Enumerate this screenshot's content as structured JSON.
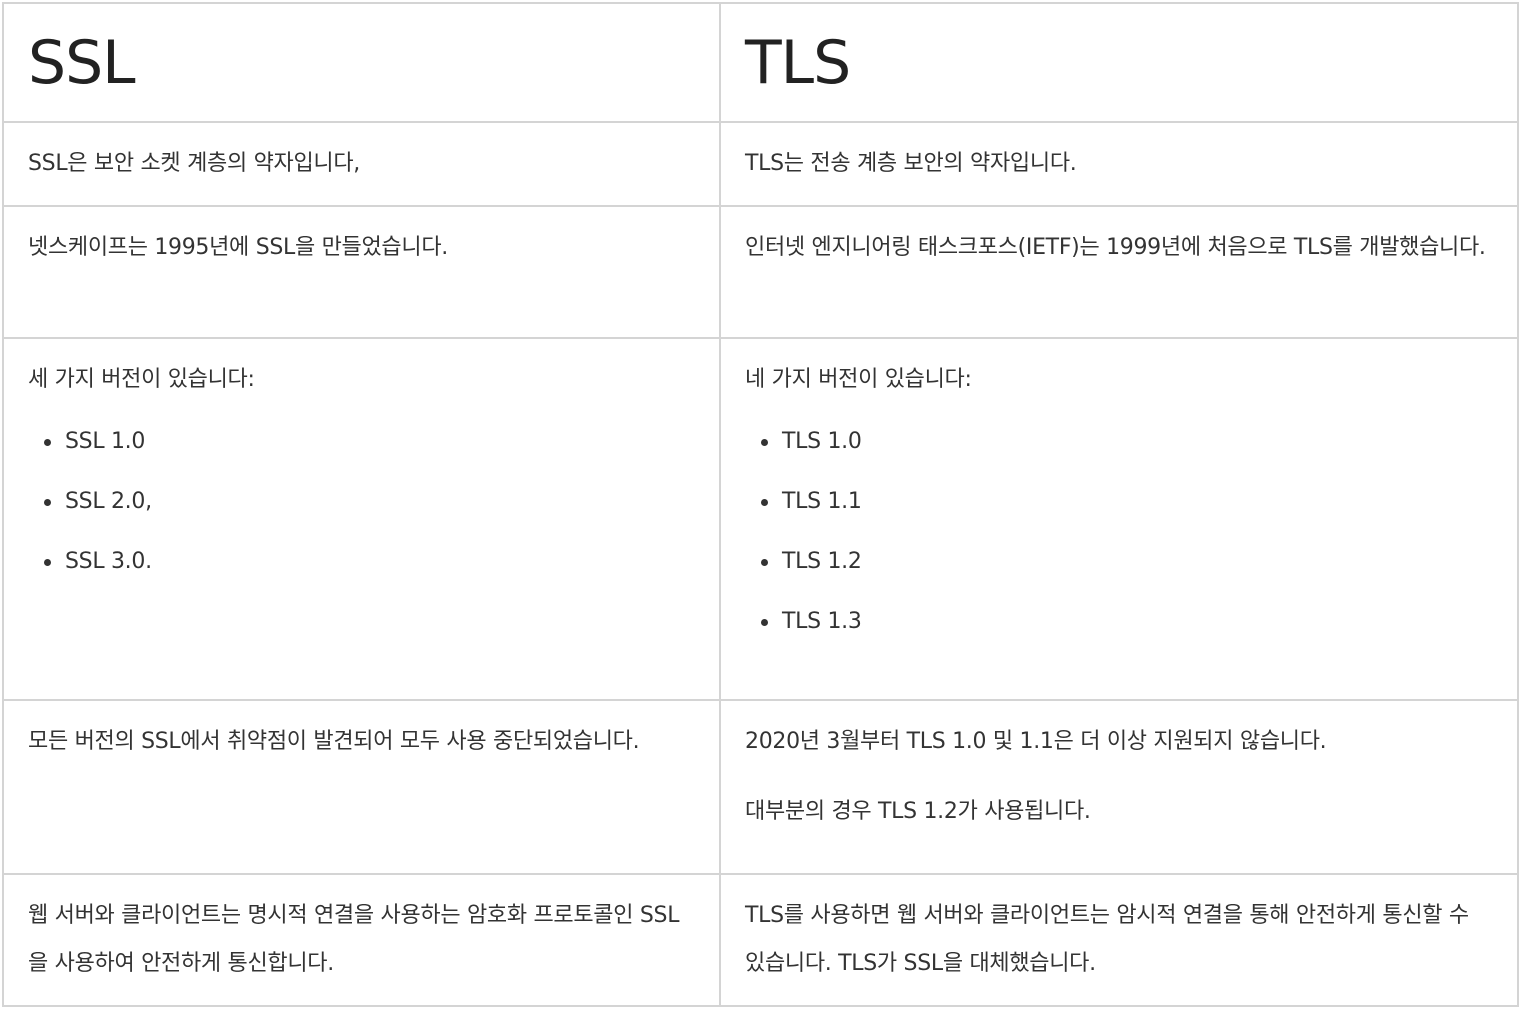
{
  "headers": {
    "ssl": "SSL",
    "tls": "TLS"
  },
  "rows": {
    "definition": {
      "ssl": "SSL은 보안 소켓 계층의 약자입니다,",
      "tls": "TLS는 전송 계층 보안의 약자입니다."
    },
    "origin": {
      "ssl": "넷스케이프는 1995년에 SSL을 만들었습니다.",
      "tls": "인터넷 엔지니어링 태스크포스(IETF)는 1999년에 처음으로 TLS를 개발했습니다."
    },
    "versions": {
      "ssl_intro": "세 가지 버전이 있습니다:",
      "ssl_items": [
        "SSL 1.0",
        "SSL 2.0,",
        "SSL 3.0."
      ],
      "tls_intro": "네 가지 버전이 있습니다:",
      "tls_items": [
        "TLS 1.0",
        "TLS 1.1",
        "TLS 1.2",
        "TLS 1.3"
      ]
    },
    "status": {
      "ssl": "모든 버전의 SSL에서 취약점이 발견되어 모두 사용 중단되었습니다.",
      "tls_1": "2020년 3월부터 TLS 1.0 및 1.1은 더 이상 지원되지 않습니다.",
      "tls_2": "대부분의 경우 TLS 1.2가 사용됩니다."
    },
    "connection": {
      "ssl": "웹 서버와 클라이언트는 명시적 연결을 사용하는 암호화 프로토콜인 SSL을 사용하여 안전하게 통신합니다.",
      "tls": "TLS를 사용하면 웹 서버와 클라이언트는 암시적 연결을 통해 안전하게 통신할 수 있습니다. TLS가 SSL을 대체했습니다."
    }
  }
}
